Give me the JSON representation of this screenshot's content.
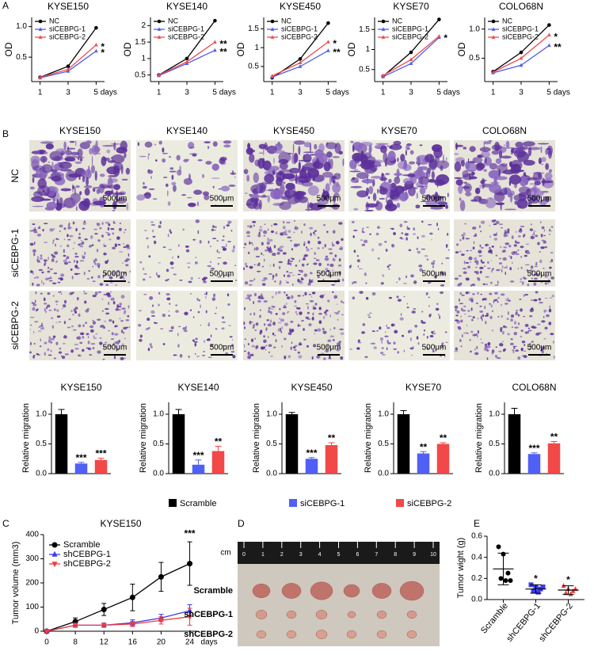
{
  "panel_labels": [
    "A",
    "B",
    "C",
    "D",
    "E"
  ],
  "chart_data": [
    {
      "type": "line",
      "title": "KYSE150",
      "ylabel": "OD",
      "x": [
        1,
        3,
        5
      ],
      "xlim": [
        0.4,
        5.6
      ],
      "xticks": [
        1,
        3,
        {
          "value": 5,
          "label": "5 days"
        }
      ],
      "ylim": [
        0.1,
        1.15
      ],
      "yticks": [
        0.5,
        {
          "value": 1,
          "label": "1.0"
        }
      ],
      "series": [
        {
          "name": "NC",
          "color": "#000000",
          "marker": "circle",
          "values": [
            0.17,
            0.35,
            0.98
          ]
        },
        {
          "name": "siCEBPG-1",
          "color": "#4f5bf0",
          "marker": "triangle",
          "values": [
            0.16,
            0.27,
            0.6
          ],
          "significance": "*"
        },
        {
          "name": "siCEBPG-2",
          "color": "#f04a4a",
          "marker": "triangle",
          "values": [
            0.17,
            0.3,
            0.7
          ],
          "significance": "*"
        }
      ]
    },
    {
      "type": "line",
      "title": "KYSE140",
      "ylabel": "OD",
      "x": [
        1,
        3,
        5
      ],
      "xlim": [
        0.4,
        5.6
      ],
      "xticks": [
        1,
        3,
        {
          "value": 5,
          "label": "5 days"
        }
      ],
      "ylim": [
        0.3,
        2.25
      ],
      "yticks": [
        0.5,
        1,
        1.5,
        2
      ],
      "series": [
        {
          "name": "NC",
          "color": "#000000",
          "marker": "circle",
          "values": [
            0.5,
            1.0,
            2.15
          ]
        },
        {
          "name": "siCEBPG-1",
          "color": "#4f5bf0",
          "marker": "triangle",
          "values": [
            0.48,
            0.85,
            1.25
          ],
          "significance": "**"
        },
        {
          "name": "siCEBPG-2",
          "color": "#f04a4a",
          "marker": "triangle",
          "values": [
            0.5,
            0.9,
            1.5
          ],
          "significance": "**"
        }
      ]
    },
    {
      "type": "line",
      "title": "KYSE450",
      "ylabel": "OD",
      "x": [
        1,
        3,
        5
      ],
      "xlim": [
        0.4,
        5.6
      ],
      "xticks": [
        1,
        3,
        {
          "value": 5,
          "label": "5 days"
        }
      ],
      "ylim": [
        0.1,
        1.8
      ],
      "yticks": [
        0.5,
        1,
        1.5
      ],
      "series": [
        {
          "name": "NC",
          "color": "#000000",
          "marker": "circle",
          "values": [
            0.2,
            0.7,
            1.65
          ]
        },
        {
          "name": "siCEBPG-1",
          "color": "#4f5bf0",
          "marker": "triangle",
          "values": [
            0.22,
            0.5,
            0.92
          ],
          "significance": "**"
        },
        {
          "name": "siCEBPG-2",
          "color": "#f04a4a",
          "marker": "triangle",
          "values": [
            0.25,
            0.6,
            1.15
          ],
          "significance": "*"
        }
      ]
    },
    {
      "type": "line",
      "title": "KYSE70",
      "ylabel": "OD",
      "x": [
        1,
        3,
        5
      ],
      "xlim": [
        0.4,
        5.6
      ],
      "xticks": [
        1,
        3,
        {
          "value": 5,
          "label": "5 days"
        }
      ],
      "ylim": [
        0.2,
        1.8
      ],
      "yticks": [
        0.5,
        1,
        1.5
      ],
      "series": [
        {
          "name": "NC",
          "color": "#000000",
          "marker": "circle",
          "values": [
            0.33,
            0.93,
            1.75
          ]
        },
        {
          "name": "siCEBPG-1",
          "color": "#4f5bf0",
          "marker": "triangle",
          "values": [
            0.32,
            0.65,
            1.3
          ]
        },
        {
          "name": "siCEBPG-2",
          "color": "#f04a4a",
          "marker": "triangle",
          "values": [
            0.35,
            0.75,
            1.33
          ],
          "significance": "*"
        }
      ]
    },
    {
      "type": "line",
      "title": "COLO68N",
      "ylabel": "OD",
      "x": [
        1,
        3,
        5
      ],
      "xlim": [
        0.4,
        5.6
      ],
      "xticks": [
        1,
        3,
        {
          "value": 5,
          "label": "5 days"
        }
      ],
      "ylim": [
        0.1,
        1.2
      ],
      "yticks": [
        0.5,
        {
          "value": 1,
          "label": "1.0"
        }
      ],
      "series": [
        {
          "name": "NC",
          "color": "#000000",
          "marker": "circle",
          "values": [
            0.27,
            0.6,
            1.07
          ]
        },
        {
          "name": "siCEBPG-1",
          "color": "#4f5bf0",
          "marker": "triangle",
          "values": [
            0.25,
            0.38,
            0.72
          ],
          "significance": "**"
        },
        {
          "name": "siCEBPG-2",
          "color": "#f04a4a",
          "marker": "triangle",
          "values": [
            0.26,
            0.5,
            0.9
          ],
          "significance": "*"
        }
      ]
    },
    {
      "type": "bar",
      "title": "KYSE150",
      "ylabel": "Relative migration",
      "categories": [
        "Scramble",
        "siCEBPG-1",
        "siCEBPG-2"
      ],
      "colors": [
        "#000000",
        "#5060f5",
        "#f24848"
      ],
      "values": [
        1,
        0.17,
        0.23
      ],
      "errors": [
        0.08,
        0.02,
        0.03
      ],
      "significance": [
        null,
        "***",
        "***"
      ],
      "ylim": [
        0,
        1.2
      ],
      "yticks": [
        {
          "value": 0,
          "label": "0.0"
        },
        0.5,
        {
          "value": 1,
          "label": "1.0"
        }
      ]
    },
    {
      "type": "bar",
      "title": "KYSE140",
      "ylabel": "Relative migration",
      "categories": [
        "Scramble",
        "siCEBPG-1",
        "siCEBPG-2"
      ],
      "colors": [
        "#000000",
        "#5060f5",
        "#f24848"
      ],
      "values": [
        1,
        0.15,
        0.38
      ],
      "errors": [
        0.08,
        0.08,
        0.08
      ],
      "significance": [
        null,
        "***",
        "**"
      ],
      "ylim": [
        0,
        1.2
      ],
      "yticks": [
        {
          "value": 0,
          "label": "0.0"
        },
        0.5,
        {
          "value": 1,
          "label": "1.0"
        }
      ]
    },
    {
      "type": "bar",
      "title": "KYSE450",
      "ylabel": "Relative migration",
      "categories": [
        "Scramble",
        "siCEBPG-1",
        "siCEBPG-2"
      ],
      "colors": [
        "#000000",
        "#5060f5",
        "#f24848"
      ],
      "values": [
        1,
        0.25,
        0.48
      ],
      "errors": [
        0.03,
        0.02,
        0.04
      ],
      "significance": [
        null,
        "***",
        "**"
      ],
      "ylim": [
        0,
        1.2
      ],
      "yticks": [
        {
          "value": 0,
          "label": "0.0"
        },
        0.5,
        {
          "value": 1,
          "label": "1.0"
        }
      ]
    },
    {
      "type": "bar",
      "title": "KYSE70",
      "ylabel": "Relative migration",
      "categories": [
        "Scramble",
        "siCEBPG-1",
        "siCEBPG-2"
      ],
      "colors": [
        "#000000",
        "#5060f5",
        "#f24848"
      ],
      "values": [
        1,
        0.34,
        0.5
      ],
      "errors": [
        0.06,
        0.03,
        0.02
      ],
      "significance": [
        null,
        "**",
        "**"
      ],
      "ylim": [
        0,
        1.2
      ],
      "yticks": [
        {
          "value": 0,
          "label": "0.0"
        },
        0.5,
        {
          "value": 1,
          "label": "1.0"
        }
      ]
    },
    {
      "type": "bar",
      "title": "COLO68N",
      "ylabel": "Relative migration",
      "categories": [
        "Scramble",
        "siCEBPG-1",
        "siCEBPG-2"
      ],
      "colors": [
        "#000000",
        "#5060f5",
        "#f24848"
      ],
      "values": [
        1,
        0.33,
        0.51
      ],
      "errors": [
        0.1,
        0.02,
        0.03
      ],
      "significance": [
        null,
        "***",
        "**"
      ],
      "ylim": [
        0,
        1.2
      ],
      "yticks": [
        {
          "value": 0,
          "label": "0.0"
        },
        0.5,
        {
          "value": 1,
          "label": "1.0"
        }
      ]
    },
    {
      "type": "line",
      "title": "KYSE150",
      "ylabel": "Tumor volume (mm3)",
      "xlabel": "days",
      "categories": [
        "0",
        "8",
        "12",
        "16",
        "20",
        "24"
      ],
      "ylim": [
        0,
        400
      ],
      "yticks": [
        0,
        100,
        200,
        300,
        400
      ],
      "series": [
        {
          "name": "Scramble",
          "color": "#000000",
          "marker": "circle",
          "values": [
            0,
            40,
            90,
            140,
            225,
            280
          ],
          "errors": [
            5,
            15,
            25,
            55,
            60,
            90
          ],
          "significance": "***"
        },
        {
          "name": "shCEBPG-1",
          "color": "#3a3af0",
          "marker": "triangle",
          "values": [
            0,
            25,
            25,
            35,
            55,
            85
          ],
          "errors": [
            3,
            8,
            8,
            12,
            15,
            25
          ]
        },
        {
          "name": "shCEBPG-2",
          "color": "#f03a3a",
          "marker": "triangle-down",
          "values": [
            0,
            25,
            25,
            30,
            45,
            60
          ],
          "errors": [
            3,
            8,
            8,
            10,
            15,
            35
          ]
        }
      ]
    },
    {
      "type": "dot",
      "ylabel": "Tumor wight (g)",
      "categories": [
        "Scramble",
        "shCEBPG-1",
        "shCEBPG-2"
      ],
      "ylim": [
        0,
        0.6
      ],
      "yticks": [
        {
          "value": 0,
          "label": "0.0"
        },
        0.2,
        0.4,
        0.6
      ],
      "groups": [
        {
          "color": "#000000",
          "marker": "circle",
          "values": [
            0.5,
            0.43,
            0.25,
            0.2,
            0.18,
            0.18
          ],
          "mean": 0.29,
          "sd": 0.15
        },
        {
          "color": "#3a3af0",
          "marker": "square",
          "values": [
            0.14,
            0.12,
            0.1,
            0.08,
            0.07,
            0.12
          ],
          "mean": 0.1,
          "sd": 0.04,
          "significance": "*"
        },
        {
          "color": "#f03a3a",
          "marker": "triangle",
          "values": [
            0.13,
            0.1,
            0.08,
            0.06,
            0.05,
            0.1
          ],
          "mean": 0.09,
          "sd": 0.04,
          "significance": "*"
        }
      ]
    }
  ],
  "micrographs": {
    "columns": [
      "KYSE150",
      "KYSE140",
      "KYSE450",
      "KYSE70",
      "COLO68N"
    ],
    "rows": [
      "NC",
      "siCEBPG-1",
      "siCEBPG-2"
    ],
    "scale_bar": "500μm"
  },
  "tumor_photo": {
    "unit": "cm",
    "ruler_ticks": [
      0,
      1,
      2,
      3,
      4,
      5,
      6,
      7,
      8,
      9,
      10
    ],
    "rows": [
      "Scramble",
      "shCEBPG-1",
      "shCEBPG-2"
    ]
  }
}
